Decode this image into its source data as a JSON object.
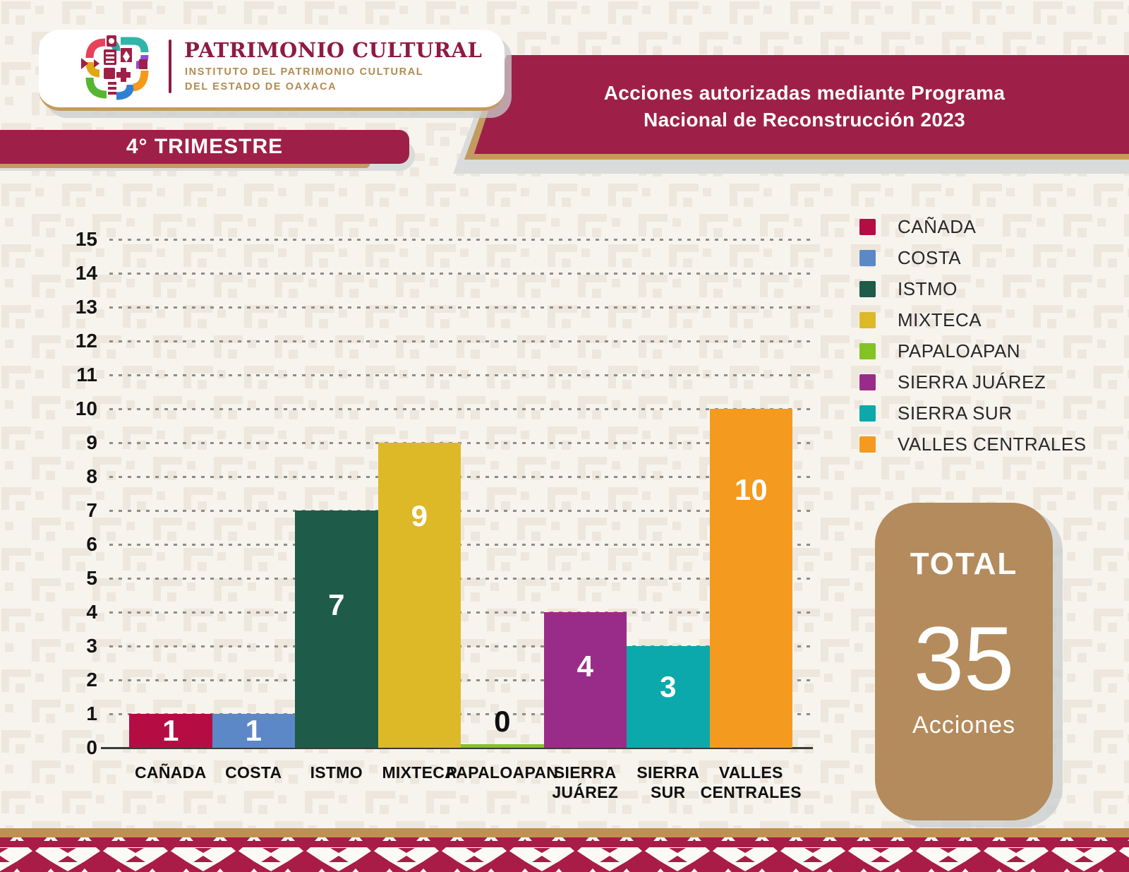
{
  "header": {
    "org_title": "PATRIMONIO CULTURAL",
    "org_subtitle1": "INSTITUTO DEL PATRIMONIO CULTURAL",
    "org_subtitle2": "DEL ESTADO DE OAXACA",
    "period_label": "4° TRIMESTRE",
    "title_line1": "Acciones autorizadas mediante Programa",
    "title_line2": "Nacional de Reconstrucción 2023"
  },
  "chart_data": {
    "type": "bar",
    "title": "Acciones autorizadas mediante Programa Nacional de Reconstrucción 2023",
    "categories": [
      "CAÑADA",
      "COSTA",
      "ISTMO",
      "MIXTECA",
      "PAPALOAPAN",
      "SIERRA JUÁREZ",
      "SIERRA SUR",
      "VALLES CENTRALES"
    ],
    "category_label_lines": [
      [
        "CAÑADA"
      ],
      [
        "COSTA"
      ],
      [
        "ISTMO"
      ],
      [
        "MIXTECA"
      ],
      [
        "PAPALOAPAN"
      ],
      [
        "SIERRA",
        "JUÁREZ"
      ],
      [
        "SIERRA",
        "SUR"
      ],
      [
        "VALLES",
        "CENTRALES"
      ]
    ],
    "values": [
      1,
      1,
      7,
      9,
      0,
      4,
      3,
      10
    ],
    "bar_value_labels": [
      "1",
      "1",
      "7",
      "9",
      "0",
      "4",
      "3",
      "10"
    ],
    "colors": [
      "#B50D43",
      "#5C88C7",
      "#1E5B49",
      "#DDB927",
      "#85C226",
      "#9A2C89",
      "#0BA9AC",
      "#F49A1F"
    ],
    "xlabel": "",
    "ylabel": "",
    "ylim": [
      0,
      15
    ],
    "ytick_step": 1,
    "grid": "horizontal-dashed",
    "legend_position": "right"
  },
  "total_card": {
    "title": "TOTAL",
    "value": "35",
    "unit": "Acciones"
  },
  "colors": {
    "banner_maroon": "#9E2048",
    "tan_accent": "#C49A5F",
    "org_text_maroon": "#8E1B42",
    "org_text_tan": "#B18A52",
    "total_card_tan": "#B48B5C",
    "pattern_crimson": "#A81C47",
    "background": "#F7F4EE"
  }
}
